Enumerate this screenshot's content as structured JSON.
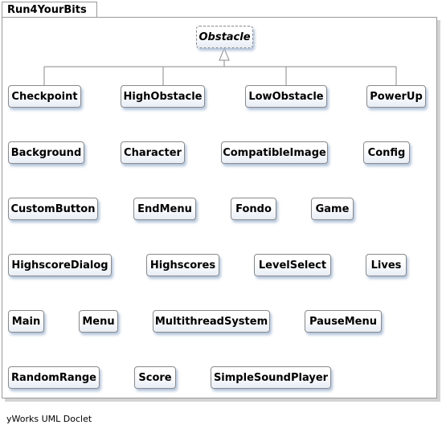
{
  "package": {
    "name": "Run4YourBits"
  },
  "superclass": {
    "name": "Obstacle"
  },
  "subclasses": [
    "Checkpoint",
    "HighObstacle",
    "LowObstacle",
    "PowerUp"
  ],
  "classes": [
    "Background",
    "Character",
    "CompatibleImage",
    "Config",
    "CustomButton",
    "EndMenu",
    "Fondo",
    "Game",
    "HighscoreDialog",
    "Highscores",
    "LevelSelect",
    "Lives",
    "Main",
    "Menu",
    "MultithreadSystem",
    "PauseMenu",
    "RandomRange",
    "Score",
    "SimpleSoundPlayer"
  ],
  "footer": {
    "generator": "yWorks UML Doclet"
  }
}
